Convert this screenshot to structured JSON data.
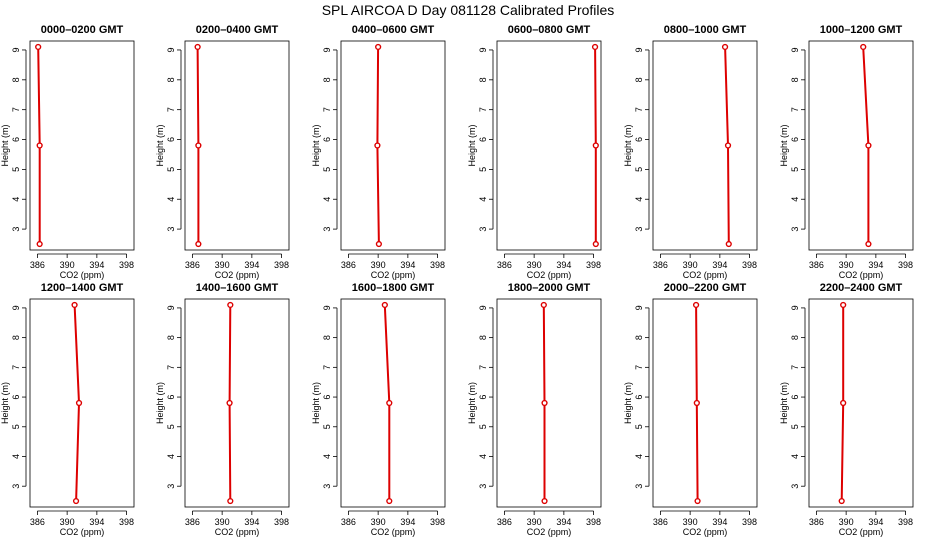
{
  "title": "SPL AIRCOA D  Day 081128  Calibrated Profiles",
  "chart_data": [
    {
      "type": "line",
      "title": "0000–0200 GMT",
      "xlabel": "CO2 (ppm)",
      "ylabel": "Height (m)",
      "xlim": [
        385,
        399
      ],
      "ylim": [
        2.3,
        9.3
      ],
      "xticks": [
        "386",
        "390",
        "394",
        "398"
      ],
      "yticks": [
        "3",
        "4",
        "5",
        "6",
        "7",
        "8",
        "9"
      ],
      "series": [
        {
          "points": [
            {
              "x": 386.1,
              "y": 9.1
            },
            {
              "x": 386.3,
              "y": 5.8
            },
            {
              "x": 386.3,
              "y": 2.5
            }
          ]
        }
      ]
    },
    {
      "type": "line",
      "title": "0200–0400 GMT",
      "xlabel": "CO2 (ppm)",
      "ylabel": "Height (m)",
      "xlim": [
        385,
        399
      ],
      "ylim": [
        2.3,
        9.3
      ],
      "xticks": [
        "386",
        "390",
        "394",
        "398"
      ],
      "yticks": [
        "3",
        "4",
        "5",
        "6",
        "7",
        "8",
        "9"
      ],
      "series": [
        {
          "points": [
            {
              "x": 386.7,
              "y": 9.1
            },
            {
              "x": 386.8,
              "y": 5.8
            },
            {
              "x": 386.8,
              "y": 2.5
            }
          ]
        }
      ]
    },
    {
      "type": "line",
      "title": "0400–0600 GMT",
      "xlabel": "CO2 (ppm)",
      "ylabel": "Height (m)",
      "xlim": [
        385,
        399
      ],
      "ylim": [
        2.3,
        9.3
      ],
      "xticks": [
        "386",
        "390",
        "394",
        "398"
      ],
      "yticks": [
        "3",
        "4",
        "5",
        "6",
        "7",
        "8",
        "9"
      ],
      "series": [
        {
          "points": [
            {
              "x": 390.0,
              "y": 9.1
            },
            {
              "x": 389.9,
              "y": 5.8
            },
            {
              "x": 390.1,
              "y": 2.5
            }
          ]
        }
      ]
    },
    {
      "type": "line",
      "title": "0600–0800 GMT",
      "xlabel": "CO2 (ppm)",
      "ylabel": "Height (m)",
      "xlim": [
        385,
        399
      ],
      "ylim": [
        2.3,
        9.3
      ],
      "xticks": [
        "386",
        "390",
        "394",
        "398"
      ],
      "yticks": [
        "3",
        "4",
        "5",
        "6",
        "7",
        "8",
        "9"
      ],
      "series": [
        {
          "points": [
            {
              "x": 398.2,
              "y": 9.1
            },
            {
              "x": 398.3,
              "y": 5.8
            },
            {
              "x": 398.3,
              "y": 2.5
            }
          ]
        }
      ]
    },
    {
      "type": "line",
      "title": "0800–1000 GMT",
      "xlabel": "CO2 (ppm)",
      "ylabel": "Height (m)",
      "xlim": [
        385,
        399
      ],
      "ylim": [
        2.3,
        9.3
      ],
      "xticks": [
        "386",
        "390",
        "394",
        "398"
      ],
      "yticks": [
        "3",
        "4",
        "5",
        "6",
        "7",
        "8",
        "9"
      ],
      "series": [
        {
          "points": [
            {
              "x": 394.7,
              "y": 9.1
            },
            {
              "x": 395.1,
              "y": 5.8
            },
            {
              "x": 395.2,
              "y": 2.5
            }
          ]
        }
      ]
    },
    {
      "type": "line",
      "title": "1000–1200 GMT",
      "xlabel": "CO2 (ppm)",
      "ylabel": "Height (m)",
      "xlim": [
        385,
        399
      ],
      "ylim": [
        2.3,
        9.3
      ],
      "xticks": [
        "386",
        "390",
        "394",
        "398"
      ],
      "yticks": [
        "3",
        "4",
        "5",
        "6",
        "7",
        "8",
        "9"
      ],
      "series": [
        {
          "points": [
            {
              "x": 392.3,
              "y": 9.1
            },
            {
              "x": 393.0,
              "y": 5.8
            },
            {
              "x": 393.0,
              "y": 2.5
            }
          ]
        }
      ]
    },
    {
      "type": "line",
      "title": "1200–1400 GMT",
      "xlabel": "CO2 (ppm)",
      "ylabel": "Height (m)",
      "xlim": [
        385,
        399
      ],
      "ylim": [
        2.3,
        9.3
      ],
      "xticks": [
        "386",
        "390",
        "394",
        "398"
      ],
      "yticks": [
        "3",
        "4",
        "5",
        "6",
        "7",
        "8",
        "9"
      ],
      "series": [
        {
          "points": [
            {
              "x": 391.0,
              "y": 9.1
            },
            {
              "x": 391.6,
              "y": 5.8
            },
            {
              "x": 391.2,
              "y": 2.5
            }
          ]
        }
      ]
    },
    {
      "type": "line",
      "title": "1400–1600 GMT",
      "xlabel": "CO2 (ppm)",
      "ylabel": "Height (m)",
      "xlim": [
        385,
        399
      ],
      "ylim": [
        2.3,
        9.3
      ],
      "xticks": [
        "386",
        "390",
        "394",
        "398"
      ],
      "yticks": [
        "3",
        "4",
        "5",
        "6",
        "7",
        "8",
        "9"
      ],
      "series": [
        {
          "points": [
            {
              "x": 391.1,
              "y": 9.1
            },
            {
              "x": 391.0,
              "y": 5.8
            },
            {
              "x": 391.1,
              "y": 2.5
            }
          ]
        }
      ]
    },
    {
      "type": "line",
      "title": "1600–1800 GMT",
      "xlabel": "CO2 (ppm)",
      "ylabel": "Height (m)",
      "xlim": [
        385,
        399
      ],
      "ylim": [
        2.3,
        9.3
      ],
      "xticks": [
        "386",
        "390",
        "394",
        "398"
      ],
      "yticks": [
        "3",
        "4",
        "5",
        "6",
        "7",
        "8",
        "9"
      ],
      "series": [
        {
          "points": [
            {
              "x": 390.9,
              "y": 9.1
            },
            {
              "x": 391.5,
              "y": 5.8
            },
            {
              "x": 391.5,
              "y": 2.5
            }
          ]
        }
      ]
    },
    {
      "type": "line",
      "title": "1800–2000 GMT",
      "xlabel": "CO2 (ppm)",
      "ylabel": "Height (m)",
      "xlim": [
        385,
        399
      ],
      "ylim": [
        2.3,
        9.3
      ],
      "xticks": [
        "386",
        "390",
        "394",
        "398"
      ],
      "yticks": [
        "3",
        "4",
        "5",
        "6",
        "7",
        "8",
        "9"
      ],
      "series": [
        {
          "points": [
            {
              "x": 391.3,
              "y": 9.1
            },
            {
              "x": 391.4,
              "y": 5.8
            },
            {
              "x": 391.4,
              "y": 2.5
            }
          ]
        }
      ]
    },
    {
      "type": "line",
      "title": "2000–2200 GMT",
      "xlabel": "CO2 (ppm)",
      "ylabel": "Height (m)",
      "xlim": [
        385,
        399
      ],
      "ylim": [
        2.3,
        9.3
      ],
      "xticks": [
        "386",
        "390",
        "394",
        "398"
      ],
      "yticks": [
        "3",
        "4",
        "5",
        "6",
        "7",
        "8",
        "9"
      ],
      "series": [
        {
          "points": [
            {
              "x": 390.8,
              "y": 9.1
            },
            {
              "x": 390.9,
              "y": 5.8
            },
            {
              "x": 391.0,
              "y": 2.5
            }
          ]
        }
      ]
    },
    {
      "type": "line",
      "title": "2200–2400 GMT",
      "xlabel": "CO2 (ppm)",
      "ylabel": "Height (m)",
      "xlim": [
        385,
        399
      ],
      "ylim": [
        2.3,
        9.3
      ],
      "xticks": [
        "386",
        "390",
        "394",
        "398"
      ],
      "yticks": [
        "3",
        "4",
        "5",
        "6",
        "7",
        "8",
        "9"
      ],
      "series": [
        {
          "points": [
            {
              "x": 389.6,
              "y": 9.1
            },
            {
              "x": 389.6,
              "y": 5.8
            },
            {
              "x": 389.4,
              "y": 2.5
            }
          ]
        }
      ]
    }
  ],
  "colors": {
    "line": "#dd0000",
    "axis": "#000000",
    "background": "#ffffff"
  }
}
